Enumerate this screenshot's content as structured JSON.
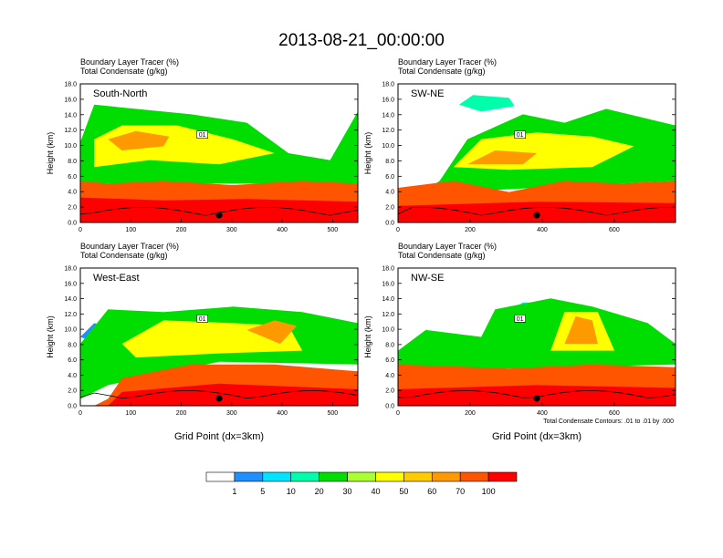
{
  "title": "2013-08-21_00:00:00",
  "colorbar": {
    "colors": [
      "#ffffff",
      "#1e90ff",
      "#00e5ff",
      "#00ffaa",
      "#00dd00",
      "#aaff33",
      "#ffff00",
      "#ffcc00",
      "#ff9900",
      "#ff5500",
      "#ff0000"
    ],
    "labels": [
      "1",
      "5",
      "10",
      "20",
      "30",
      "40",
      "50",
      "60",
      "70",
      "100"
    ]
  },
  "note": "Total Condensate Contours: .01 to .01 by .000",
  "chart_data": [
    {
      "type": "heatmap",
      "label": "South-North",
      "subtitle1": "Boundary Layer Tracer   (%)",
      "subtitle2": "Total Condensate   (g/kg)",
      "xlabel": "",
      "ylabel": "Height (km)",
      "xlim": [
        0,
        550
      ],
      "ylim": [
        0,
        18
      ],
      "x_ticks": [
        0,
        100,
        200,
        300,
        400,
        500
      ],
      "y_ticks": [
        "0.0",
        "2.0",
        "4.0",
        "6.0",
        "8.0",
        "10.0",
        "12.0",
        "14.0",
        "16.0",
        "18.0"
      ],
      "contour_label": "01",
      "marker_x": 275
    },
    {
      "type": "heatmap",
      "label": "SW-NE",
      "subtitle1": "Boundary Layer Tracer   (%)",
      "subtitle2": "Total Condensate   (g/kg)",
      "xlabel": "",
      "ylabel": "Height (km)",
      "xlim": [
        0,
        770
      ],
      "ylim": [
        0,
        18
      ],
      "x_ticks": [
        0,
        200,
        400,
        600
      ],
      "y_ticks": [
        "0.0",
        "2.0",
        "4.0",
        "6.0",
        "8.0",
        "10.0",
        "12.0",
        "14.0",
        "16.0",
        "18.0"
      ],
      "contour_label": "01",
      "marker_x": 385
    },
    {
      "type": "heatmap",
      "label": "West-East",
      "subtitle1": "Boundary Layer Tracer   (%)",
      "subtitle2": "Total Condensate   (g/kg)",
      "xlabel": "Grid Point (dx=3km)",
      "ylabel": "Height (km)",
      "xlim": [
        0,
        550
      ],
      "ylim": [
        0,
        18
      ],
      "x_ticks": [
        0,
        100,
        200,
        300,
        400,
        500
      ],
      "y_ticks": [
        "0.0",
        "2.0",
        "4.0",
        "6.0",
        "8.0",
        "10.0",
        "12.0",
        "14.0",
        "16.0",
        "18.0"
      ],
      "contour_label": "01",
      "marker_x": 275
    },
    {
      "type": "heatmap",
      "label": "NW-SE",
      "subtitle1": "Boundary Layer Tracer   (%)",
      "subtitle2": "Total Condensate   (g/kg)",
      "xlabel": "Grid Point (dx=3km)",
      "ylabel": "Height (km)",
      "xlim": [
        0,
        770
      ],
      "ylim": [
        0,
        18
      ],
      "x_ticks": [
        0,
        200,
        400,
        600
      ],
      "y_ticks": [
        "0.0",
        "2.0",
        "4.0",
        "6.0",
        "8.0",
        "10.0",
        "12.0",
        "14.0",
        "16.0",
        "18.0"
      ],
      "contour_label": "01",
      "marker_x": 385
    }
  ]
}
